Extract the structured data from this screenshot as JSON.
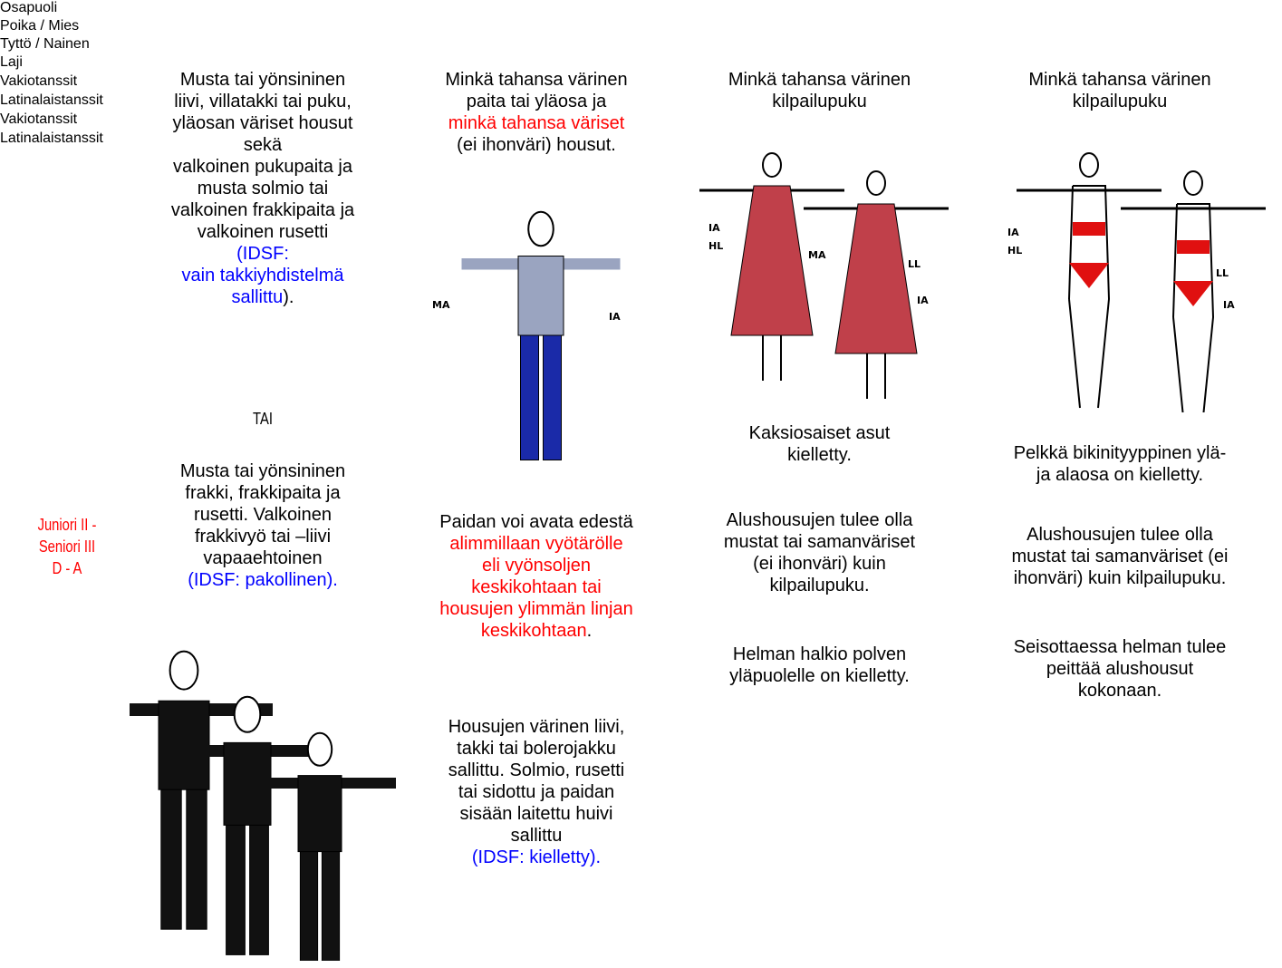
{
  "header": {
    "rows": [
      [
        "Osapuoli",
        "Poika / Mies",
        "Tyttö / Nainen"
      ],
      [
        "Laji",
        "Vakiotanssit",
        "Latinalaistanssit",
        "Vakiotanssit",
        "Latinalaistanssit"
      ]
    ]
  },
  "body": {
    "cells": [
      {
        "blocks": [
          {
            "lines": [
              [
                "Juniori II -"
              ],
              [
                "Seniori III"
              ],
              [
                "D - A"
              ]
            ]
          }
        ]
      },
      {
        "blocks": [
          {
            "lines": [
              [
                "Musta tai yönsininen"
              ],
              [
                "liivi, villatakki tai puku,"
              ],
              [
                "yläosan väriset housut"
              ],
              [
                "sekä"
              ],
              [
                "valkoinen pukupaita ja"
              ],
              [
                "musta solmio tai"
              ],
              [
                "valkoinen frakkipaita ja"
              ],
              [
                "valkoinen rusetti"
              ],
              [
                {
                  "text": "(IDSF:",
                  "color": "#0000ff"
                }
              ],
              [
                {
                  "text": "vain takkiyhdistelmä",
                  "color": "#0000ff"
                }
              ],
              [
                {
                  "text": "sallittu",
                  "color": "#0000ff"
                },
                ")."
              ]
            ]
          },
          {
            "lines": [
              [
                "TAI"
              ]
            ]
          },
          {
            "lines": [
              [
                "Musta tai yönsininen"
              ],
              [
                "frakki, frakkipaita ja"
              ],
              [
                "rusetti. Valkoinen"
              ],
              [
                "frakkivyö tai –liivi"
              ],
              [
                "vapaaehtoinen"
              ],
              [
                {
                  "text": "(IDSF: pakollinen).",
                  "color": "#0000ff"
                }
              ]
            ]
          },
          {
            "figure": []
          }
        ]
      },
      {
        "blocks": [
          {
            "lines": [
              [
                "Minkä tahansa värinen"
              ],
              [
                "paita tai yläosa ja"
              ],
              [
                {
                  "text": "minkä tahansa väriset",
                  "color": "#ff0000"
                }
              ],
              [
                "(ei ihonväri) housut."
              ]
            ]
          },
          {
            "figure": [
              "MA",
              "IA"
            ]
          },
          {
            "lines": [
              [
                "Paidan voi avata edestä"
              ],
              [
                {
                  "text": "alimmillaan vyötärölle",
                  "color": "#ff0000"
                }
              ],
              [
                {
                  "text": "eli vyönsoljen",
                  "color": "#ff0000"
                }
              ],
              [
                {
                  "text": "keskikohtaan tai",
                  "color": "#ff0000"
                }
              ],
              [
                {
                  "text": "housujen ylimmän linjan",
                  "color": "#ff0000"
                }
              ],
              [
                {
                  "text": "keskikohtaan",
                  "color": "#ff0000"
                },
                "."
              ]
            ]
          },
          {
            "lines": [
              [
                "Housujen värinen liivi,"
              ],
              [
                "takki tai bolerojakku"
              ],
              [
                "sallittu. Solmio, rusetti"
              ],
              [
                "tai sidottu ja paidan"
              ],
              [
                "sisään laitettu huivi"
              ],
              [
                "sallittu"
              ],
              [
                {
                  "text": "(IDSF: kielletty).",
                  "color": "#0000ff"
                }
              ]
            ]
          }
        ]
      },
      {
        "blocks": [
          {
            "lines": [
              [
                "Minkä tahansa värinen"
              ],
              [
                "kilpailupuku"
              ]
            ]
          },
          {
            "figure": [
              "IA",
              "HL",
              "MA",
              "LL",
              "IA"
            ]
          },
          {
            "lines": [
              [
                "Kaksiosaiset asut"
              ],
              [
                "kielletty."
              ]
            ]
          },
          {
            "lines": [
              [
                "Alushousujen tulee olla"
              ],
              [
                "mustat tai samanväriset"
              ],
              [
                "(ei ihonväri) kuin"
              ],
              [
                "kilpailupuku."
              ]
            ]
          },
          {
            "lines": [
              [
                "Helman halkio polven"
              ],
              [
                "yläpuolelle on kielletty."
              ]
            ]
          }
        ]
      },
      {
        "blocks": [
          {
            "lines": [
              [
                "Minkä tahansa värinen"
              ],
              [
                "kilpailupuku"
              ]
            ]
          },
          {
            "figure": [
              "IA",
              "HL",
              "LL",
              "IA"
            ]
          },
          {
            "lines": [
              [
                "Pelkkä bikinityyppinen ylä-"
              ],
              [
                "ja alaosa on kielletty."
              ]
            ]
          },
          {
            "lines": [
              [
                "Alushousujen tulee olla"
              ],
              [
                "mustat tai samanväriset (ei"
              ],
              [
                "ihonväri) kuin kilpailupuku."
              ]
            ]
          },
          {
            "lines": [
              [
                "Seisottaessa helman tulee"
              ],
              [
                "peittää alushousut"
              ],
              [
                "kokonaan."
              ]
            ]
          }
        ]
      }
    ]
  }
}
